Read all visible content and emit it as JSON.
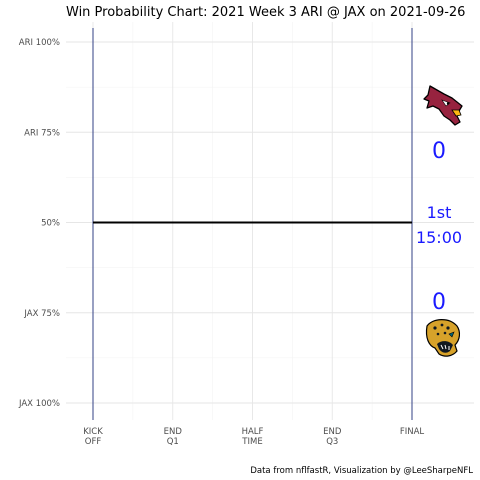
{
  "chart_data": {
    "type": "line",
    "title": "Win Probability Chart: 2021 Week 3 ARI @ JAX on 2021-09-26",
    "y_ticks": [
      {
        "label": "ARI 100%",
        "value": 1.0
      },
      {
        "label": "ARI 75%",
        "value": 0.75
      },
      {
        "label": "50%",
        "value": 0.5
      },
      {
        "label": "JAX 75%",
        "value": 0.25
      },
      {
        "label": "JAX 100%",
        "value": 0.0
      }
    ],
    "x_ticks": [
      {
        "line1": "KICK",
        "line2": "OFF",
        "value": 0
      },
      {
        "line1": "END",
        "line2": "Q1",
        "value": 900
      },
      {
        "line1": "HALF",
        "line2": "TIME",
        "value": 1800
      },
      {
        "line1": "END",
        "line2": "Q3",
        "value": 2700
      },
      {
        "line1": "FINAL",
        "line2": "",
        "value": 3600
      }
    ],
    "xlim": [
      0,
      3600
    ],
    "ylim": [
      0,
      1
    ],
    "grid": true,
    "series": [
      {
        "x": [
          0,
          3600
        ],
        "values": [
          0.5,
          0.5
        ],
        "color": "#000000"
      }
    ],
    "vlines": [
      0,
      3600
    ],
    "vline_color": "#1f2e7a",
    "caption": "Data from nflfastR, Visualization by @LeeSharpeNFL",
    "teams": {
      "away": {
        "abbr": "ARI",
        "score": "0",
        "logo": "cardinals-logo",
        "color": "#97233f"
      },
      "home": {
        "abbr": "JAX",
        "score": "0",
        "logo": "jaguars-logo",
        "color": "#006778"
      }
    },
    "game_clock": {
      "quarter": "1st",
      "time": "15:00"
    },
    "text_color": "#1a1aff"
  }
}
